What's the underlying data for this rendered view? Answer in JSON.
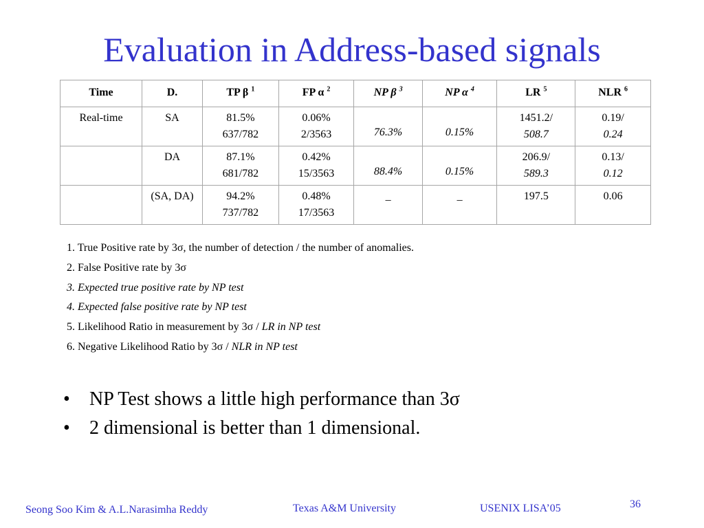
{
  "title": "Evaluation in Address-based signals",
  "table": {
    "headers": [
      {
        "label": "Time",
        "sup": ""
      },
      {
        "label": "D.",
        "sup": ""
      },
      {
        "label": "TP β",
        "sup": "1"
      },
      {
        "label": "FP α",
        "sup": "2"
      },
      {
        "label": "NP β",
        "sup": "3"
      },
      {
        "label": "NP α",
        "sup": "4"
      },
      {
        "label": "LR",
        "sup": "5"
      },
      {
        "label": "NLR",
        "sup": "6"
      }
    ],
    "rows": [
      {
        "time": "Real-time",
        "d": "SA",
        "tp": [
          "81.5%",
          "637/782"
        ],
        "fp": [
          "0.06%",
          "2/3563"
        ],
        "np_beta": "76.3%",
        "np_alpha": "0.15%",
        "lr": [
          "1451.2/",
          "508.7"
        ],
        "nlr": [
          "0.19/",
          "0.24"
        ]
      },
      {
        "time": "",
        "d": "DA",
        "tp": [
          "87.1%",
          "681/782"
        ],
        "fp": [
          "0.42%",
          "15/3563"
        ],
        "np_beta": "88.4%",
        "np_alpha": "0.15%",
        "lr": [
          "206.9/",
          "589.3"
        ],
        "nlr": [
          "0.13/",
          "0.12"
        ]
      },
      {
        "time": "",
        "d": "(SA, DA)",
        "tp": [
          "94.2%",
          "737/782"
        ],
        "fp": [
          "0.48%",
          "17/3563"
        ],
        "np_beta": "_",
        "np_alpha": "_",
        "lr": [
          "197.5",
          ""
        ],
        "nlr": [
          "0.06",
          ""
        ]
      }
    ]
  },
  "footnotes": {
    "n1": "1. True Positive rate by 3σ, the number of detection / the number of anomalies.",
    "n2": "2. False Positive rate by 3σ",
    "n3": "3. Expected true positive rate by NP test",
    "n4": "4. Expected false positive rate by NP test",
    "n5a": "5. Likelihood Ratio in measurement by 3σ / ",
    "n5b": "LR in NP test",
    "n6a": "6. Negative Likelihood Ratio by 3σ / ",
    "n6b": "NLR in NP test"
  },
  "bullets": [
    "NP Test shows a little high performance than 3σ",
    "2 dimensional is better than 1 dimensional."
  ],
  "bullet_marker": "•",
  "footer": {
    "authors": "Seong Soo Kim & A.L.Narasimha Reddy",
    "university": "Texas A&M University",
    "conference": "USENIX LISA’05",
    "page": "36"
  }
}
